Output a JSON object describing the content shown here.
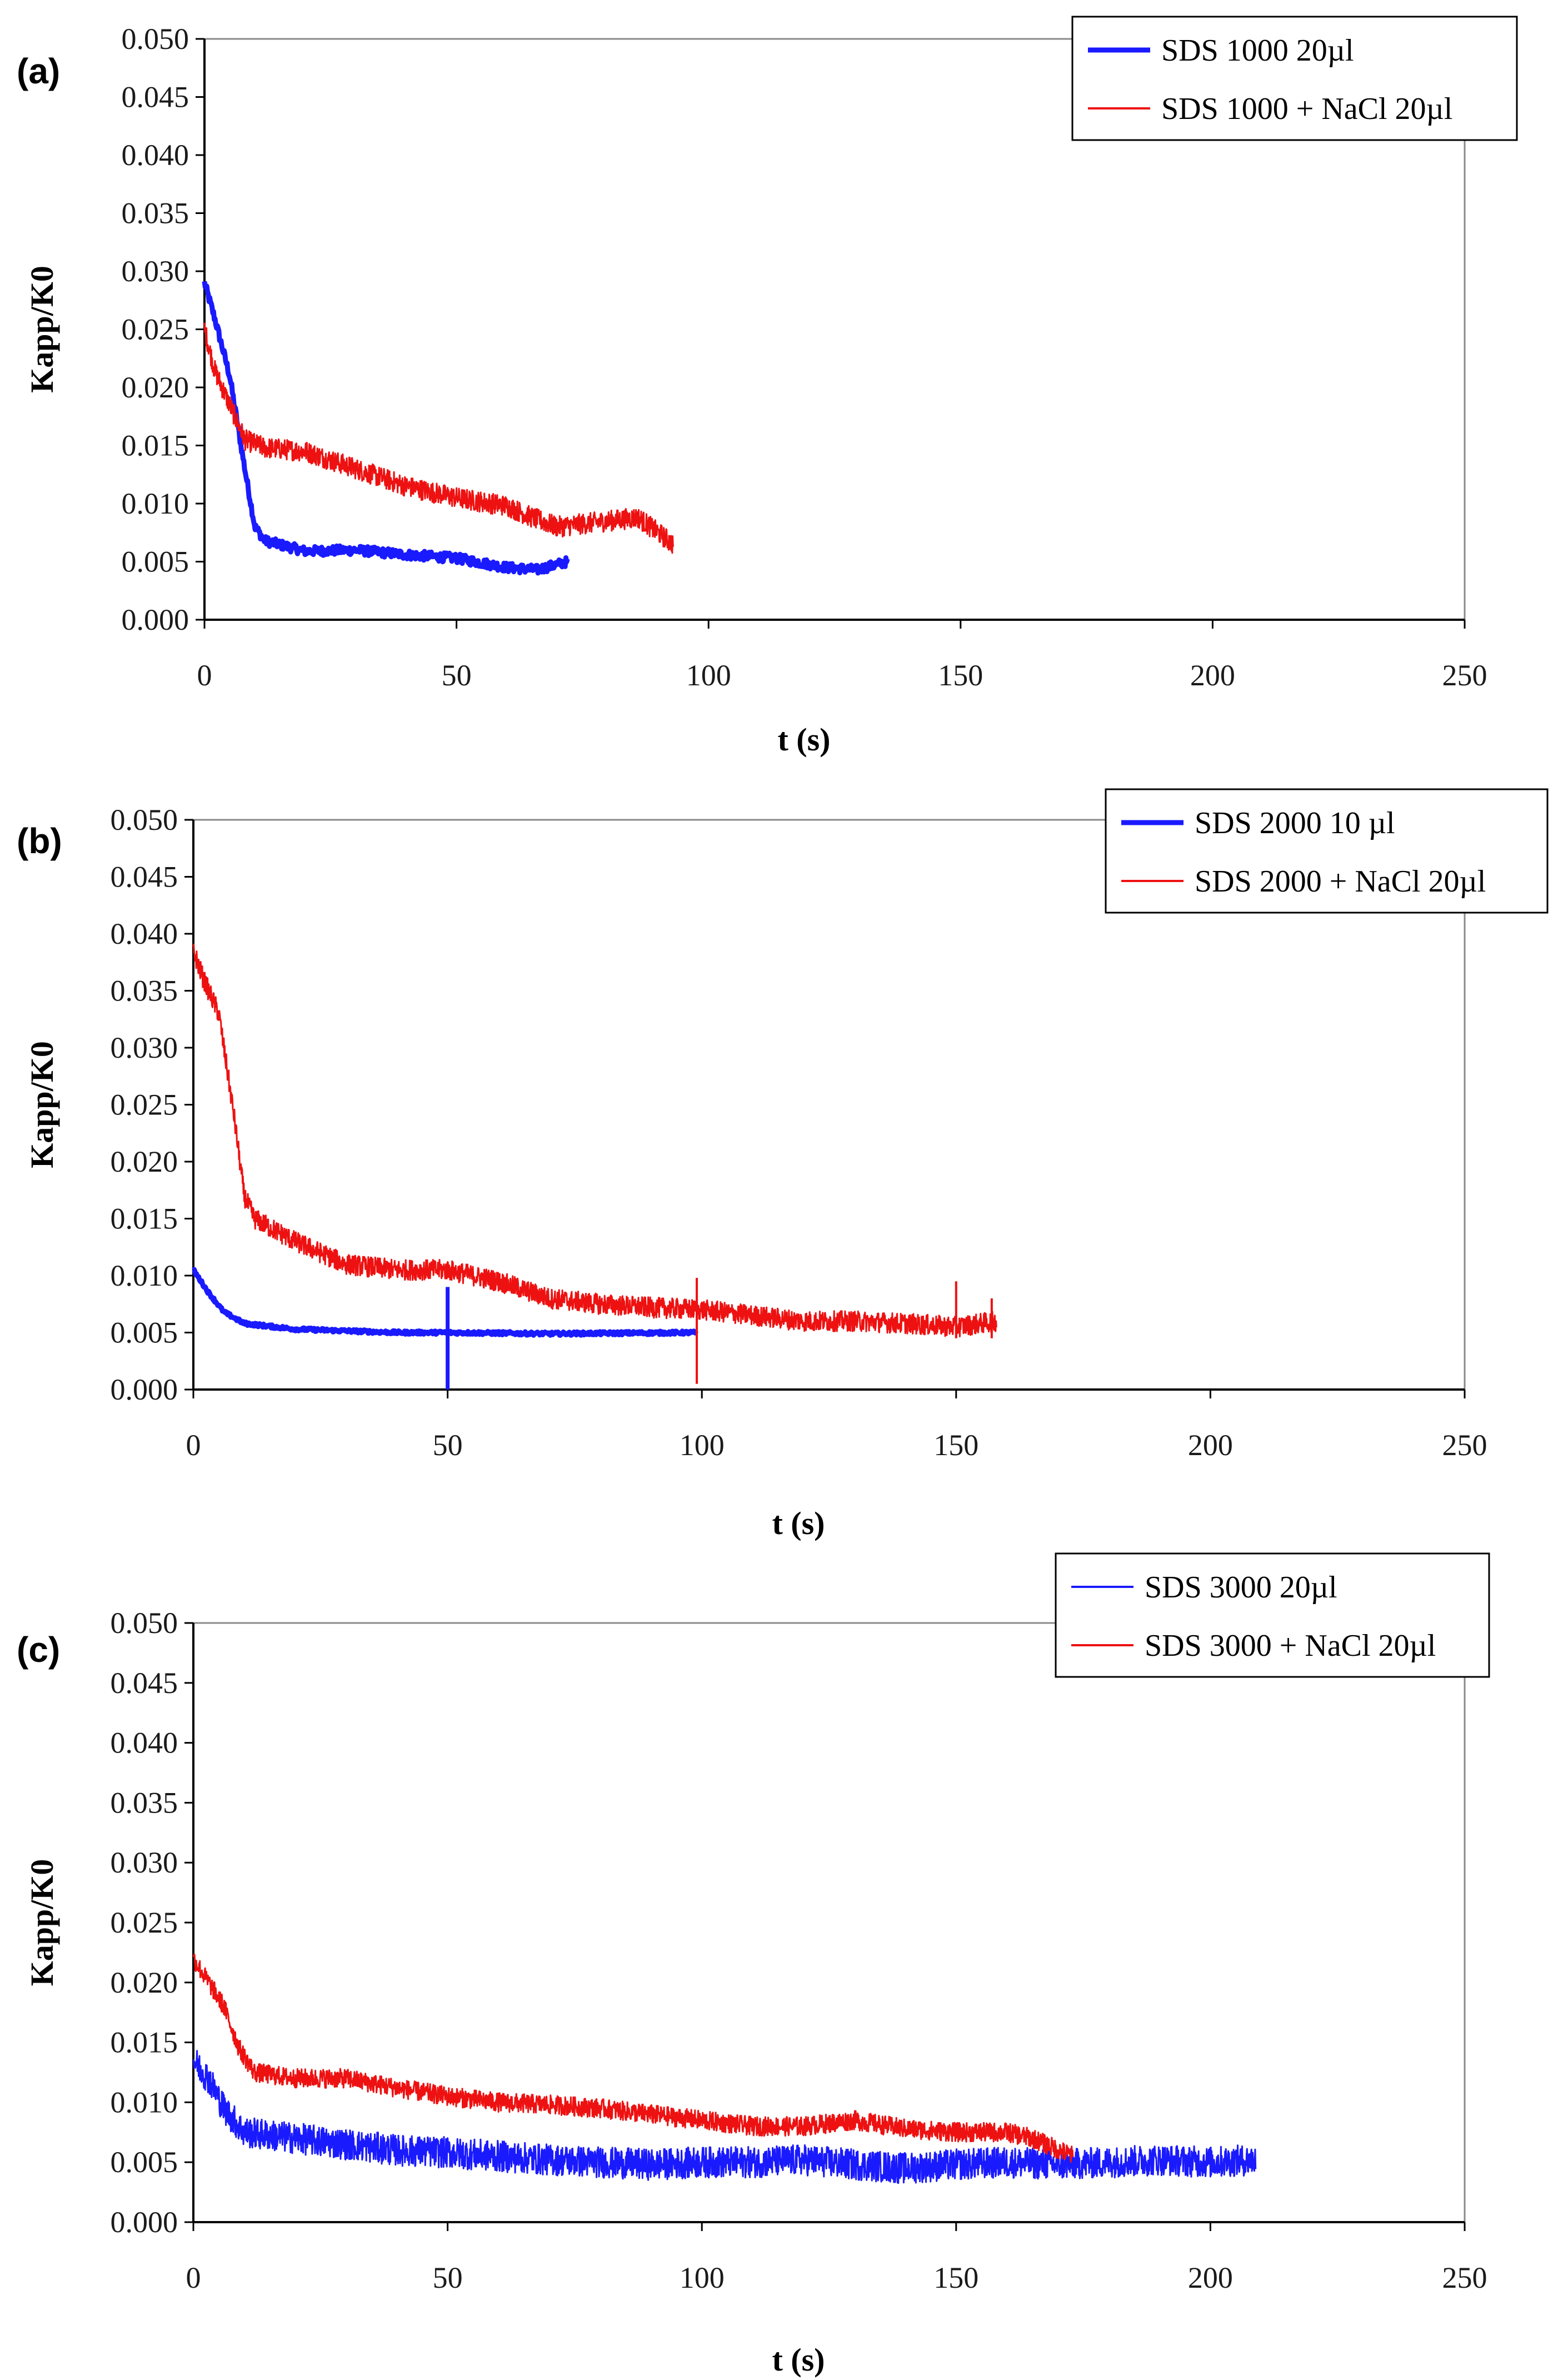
{
  "chart_data": [
    {
      "type": "line",
      "panel_label": "(a)",
      "xlabel": "t (s)",
      "ylabel": "Kapp/K0",
      "xlim": [
        0,
        250
      ],
      "ylim": [
        0,
        0.05
      ],
      "xticks": [
        "0",
        "50",
        "100",
        "150",
        "200",
        "250"
      ],
      "yticks": [
        "0.000",
        "0.005",
        "0.010",
        "0.015",
        "0.020",
        "0.025",
        "0.030",
        "0.035",
        "0.040",
        "0.045",
        "0.050"
      ],
      "legend_position": "top-right",
      "series": [
        {
          "name": "SDS 1000 20µl",
          "color": "#1a1aff",
          "width": "thick",
          "noise": 0.0004,
          "points": [
            [
              0,
              0.029
            ],
            [
              2,
              0.026
            ],
            [
              5,
              0.021
            ],
            [
              8,
              0.013
            ],
            [
              10,
              0.008
            ],
            [
              12,
              0.0068
            ],
            [
              20,
              0.0059
            ],
            [
              30,
              0.006
            ],
            [
              40,
              0.0056
            ],
            [
              50,
              0.0053
            ],
            [
              60,
              0.0045
            ],
            [
              66,
              0.0043
            ],
            [
              72,
              0.005
            ]
          ]
        },
        {
          "name": "SDS 1000 + NaCl 20µl",
          "color": "#ee1111",
          "width": "thin",
          "noise": 0.0009,
          "points": [
            [
              0,
              0.025
            ],
            [
              2,
              0.0215
            ],
            [
              5,
              0.0185
            ],
            [
              8,
              0.0155
            ],
            [
              12,
              0.0148
            ],
            [
              20,
              0.0145
            ],
            [
              30,
              0.013
            ],
            [
              40,
              0.0115
            ],
            [
              50,
              0.0105
            ],
            [
              60,
              0.0098
            ],
            [
              65,
              0.0088
            ],
            [
              70,
              0.008
            ],
            [
              80,
              0.0085
            ],
            [
              86,
              0.0088
            ],
            [
              90,
              0.0075
            ],
            [
              93,
              0.0065
            ]
          ]
        }
      ]
    },
    {
      "type": "line",
      "panel_label": "(b)",
      "xlabel": "t (s)",
      "ylabel": "Kapp/K0",
      "xlim": [
        0,
        250
      ],
      "ylim": [
        0,
        0.05
      ],
      "xticks": [
        "0",
        "50",
        "100",
        "150",
        "200",
        "250"
      ],
      "yticks": [
        "0.000",
        "0.005",
        "0.010",
        "0.015",
        "0.020",
        "0.025",
        "0.030",
        "0.035",
        "0.040",
        "0.045",
        "0.050"
      ],
      "legend_position": "top-right",
      "series": [
        {
          "name": "SDS 2000 10 µl",
          "color": "#1a1aff",
          "width": "thick",
          "noise": 0.00015,
          "points": [
            [
              0,
              0.0105
            ],
            [
              3,
              0.0085
            ],
            [
              6,
              0.0068
            ],
            [
              10,
              0.0058
            ],
            [
              20,
              0.0053
            ],
            [
              40,
              0.005
            ],
            [
              50,
              0.005
            ],
            [
              70,
              0.0049
            ],
            [
              99,
              0.005
            ]
          ],
          "spikes": [
            [
              50,
              0.0,
              0.009
            ]
          ]
        },
        {
          "name": "SDS 2000 + NaCl 20µl",
          "color": "#ee1111",
          "width": "thin",
          "noise": 0.0009,
          "points": [
            [
              0,
              0.0385
            ],
            [
              2,
              0.036
            ],
            [
              5,
              0.033
            ],
            [
              8,
              0.024
            ],
            [
              10,
              0.017
            ],
            [
              12,
              0.015
            ],
            [
              20,
              0.013
            ],
            [
              30,
              0.011
            ],
            [
              40,
              0.0105
            ],
            [
              50,
              0.0105
            ],
            [
              60,
              0.0095
            ],
            [
              70,
              0.008
            ],
            [
              80,
              0.0075
            ],
            [
              90,
              0.0072
            ],
            [
              100,
              0.007
            ],
            [
              110,
              0.0065
            ],
            [
              120,
              0.006
            ],
            [
              130,
              0.006
            ],
            [
              140,
              0.0058
            ],
            [
              150,
              0.0055
            ],
            [
              158,
              0.006
            ]
          ],
          "spikes": [
            [
              99,
              0.0005,
              0.0098
            ],
            [
              150,
              0.0045,
              0.0095
            ],
            [
              157,
              0.0045,
              0.008
            ]
          ]
        }
      ]
    },
    {
      "type": "line",
      "panel_label": "(c)",
      "xlabel": "t (s)",
      "ylabel": "Kapp/K0",
      "xlim": [
        0,
        250
      ],
      "ylim": [
        0,
        0.05
      ],
      "xticks": [
        "0",
        "50",
        "100",
        "150",
        "200",
        "250"
      ],
      "yticks": [
        "0.000",
        "0.005",
        "0.010",
        "0.015",
        "0.020",
        "0.025",
        "0.030",
        "0.035",
        "0.040",
        "0.045",
        "0.050"
      ],
      "legend_position": "top-right",
      "series": [
        {
          "name": "SDS 3000 20µl",
          "color": "#1a1aff",
          "width": "thin",
          "noise": 0.0013,
          "points": [
            [
              0,
              0.0135
            ],
            [
              3,
              0.012
            ],
            [
              6,
              0.0095
            ],
            [
              10,
              0.0075
            ],
            [
              20,
              0.007
            ],
            [
              30,
              0.0065
            ],
            [
              40,
              0.006
            ],
            [
              50,
              0.0058
            ],
            [
              60,
              0.0055
            ],
            [
              70,
              0.0052
            ],
            [
              80,
              0.005
            ],
            [
              90,
              0.0048
            ],
            [
              100,
              0.005
            ],
            [
              110,
              0.005
            ],
            [
              120,
              0.0052
            ],
            [
              130,
              0.0048
            ],
            [
              140,
              0.0045
            ],
            [
              150,
              0.0048
            ],
            [
              160,
              0.005
            ],
            [
              170,
              0.0048
            ],
            [
              180,
              0.005
            ],
            [
              190,
              0.0052
            ],
            [
              200,
              0.005
            ],
            [
              209,
              0.0052
            ]
          ]
        },
        {
          "name": "SDS 3000 + NaCl 20µl",
          "color": "#ee1111",
          "width": "thin",
          "noise": 0.0008,
          "points": [
            [
              0,
              0.022
            ],
            [
              3,
              0.02
            ],
            [
              6,
              0.018
            ],
            [
              9,
              0.0145
            ],
            [
              12,
              0.0125
            ],
            [
              20,
              0.012
            ],
            [
              30,
              0.012
            ],
            [
              40,
              0.0112
            ],
            [
              50,
              0.0105
            ],
            [
              60,
              0.01
            ],
            [
              70,
              0.0098
            ],
            [
              80,
              0.0095
            ],
            [
              90,
              0.009
            ],
            [
              100,
              0.0085
            ],
            [
              110,
              0.008
            ],
            [
              120,
              0.008
            ],
            [
              130,
              0.0085
            ],
            [
              140,
              0.0078
            ],
            [
              150,
              0.0075
            ],
            [
              160,
              0.0075
            ],
            [
              165,
              0.007
            ],
            [
              173,
              0.0055
            ]
          ]
        }
      ]
    }
  ]
}
